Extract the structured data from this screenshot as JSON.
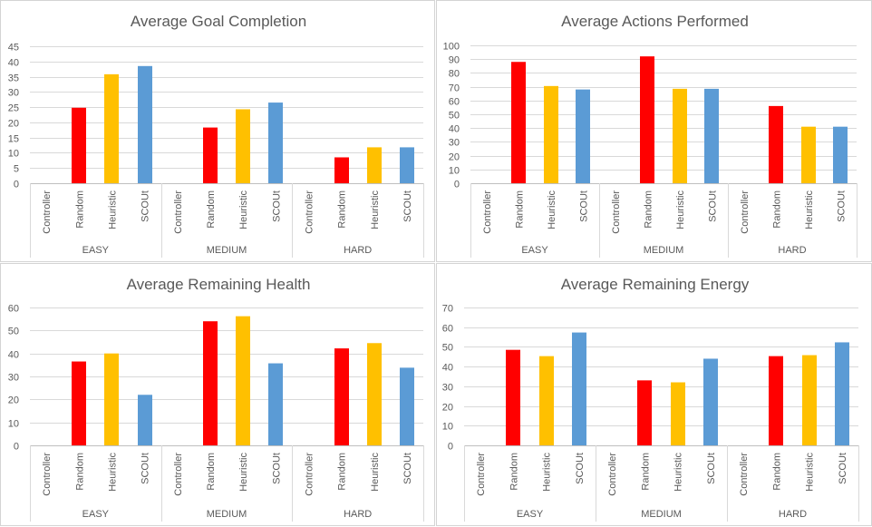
{
  "chart_data": [
    {
      "type": "bar",
      "title": "Average Goal Completion",
      "groups": [
        "EASY",
        "MEDIUM",
        "HARD"
      ],
      "categories": [
        "Controller",
        "Random",
        "Heuristic",
        "SCOUt"
      ],
      "colors": [
        "#5b9bd5",
        "#ff0000",
        "#ffc000",
        "#5b9bd5"
      ],
      "values": [
        [
          0,
          24.8,
          35.8,
          38.5
        ],
        [
          0,
          18.3,
          24.3,
          26.5
        ],
        [
          0,
          8.5,
          11.8,
          11.8
        ]
      ],
      "ylim": [
        0,
        45
      ],
      "yticks": [
        0,
        5,
        10,
        15,
        20,
        25,
        30,
        35,
        40,
        45
      ],
      "grid": true
    },
    {
      "type": "bar",
      "title": "Average Actions Performed",
      "groups": [
        "EASY",
        "MEDIUM",
        "HARD"
      ],
      "categories": [
        "Controller",
        "Random",
        "Heuristic",
        "SCOUt"
      ],
      "colors": [
        "#5b9bd5",
        "#ff0000",
        "#ffc000",
        "#5b9bd5"
      ],
      "values": [
        [
          0,
          88,
          70.5,
          68
        ],
        [
          0,
          92,
          68.5,
          68.5
        ],
        [
          0,
          56,
          41,
          41
        ]
      ],
      "ylim": [
        0,
        100
      ],
      "yticks": [
        0,
        10,
        20,
        30,
        40,
        50,
        60,
        70,
        80,
        90,
        100
      ],
      "grid": true
    },
    {
      "type": "bar",
      "title": "Average Remaining Health",
      "groups": [
        "EASY",
        "MEDIUM",
        "HARD"
      ],
      "categories": [
        "Controller",
        "Random",
        "Heuristic",
        "SCOUt"
      ],
      "colors": [
        "#5b9bd5",
        "#ff0000",
        "#ffc000",
        "#5b9bd5"
      ],
      "values": [
        [
          0,
          36.5,
          40,
          22
        ],
        [
          0,
          54,
          56.2,
          35.7
        ],
        [
          0,
          42.2,
          44.5,
          33.8
        ]
      ],
      "ylim": [
        0,
        60
      ],
      "yticks": [
        0,
        10,
        20,
        30,
        40,
        50,
        60
      ],
      "grid": true
    },
    {
      "type": "bar",
      "title": "Average Remaining Energy",
      "groups": [
        "EASY",
        "MEDIUM",
        "HARD"
      ],
      "categories": [
        "Controller",
        "Random",
        "Heuristic",
        "SCOUt"
      ],
      "colors": [
        "#5b9bd5",
        "#ff0000",
        "#ffc000",
        "#5b9bd5"
      ],
      "values": [
        [
          0,
          48.5,
          45.3,
          57.3
        ],
        [
          0,
          33,
          32,
          44
        ],
        [
          0,
          45.3,
          45.8,
          52.3
        ]
      ],
      "ylim": [
        0,
        70
      ],
      "yticks": [
        0,
        10,
        20,
        30,
        40,
        50,
        60,
        70
      ],
      "grid": true
    }
  ]
}
